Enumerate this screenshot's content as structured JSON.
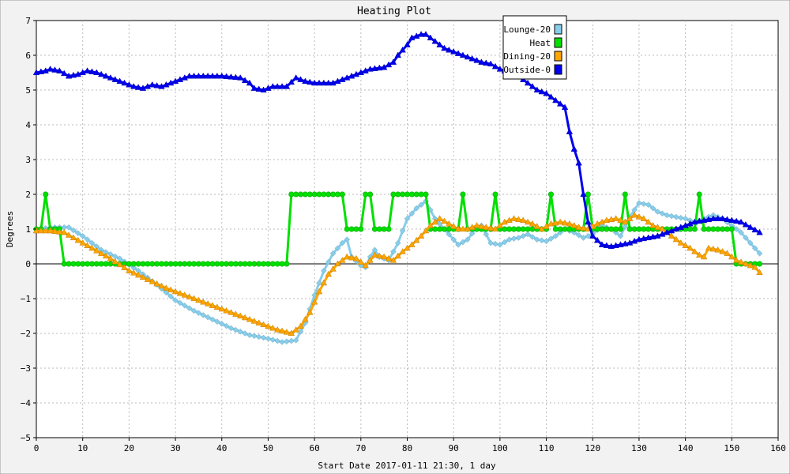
{
  "chart_data": {
    "type": "line",
    "title": "Heating Plot",
    "xlabel": "Start Date 2017-01-11 21:30, 1 day",
    "ylabel": "Degrees",
    "xlim": [
      0,
      160
    ],
    "ylim": [
      -5,
      7
    ],
    "xticks": [
      0,
      10,
      20,
      30,
      40,
      50,
      60,
      70,
      80,
      90,
      100,
      110,
      120,
      130,
      140,
      150,
      160
    ],
    "yticks": [
      -5,
      -4,
      -3,
      -2,
      -1,
      0,
      1,
      2,
      3,
      4,
      5,
      6,
      7
    ],
    "grid": true,
    "legend_position": "top-right",
    "series": [
      {
        "name": "Lounge-20",
        "color": "#87ceeb",
        "marker": "diamond",
        "points": [
          [
            0,
            1.0
          ],
          [
            4,
            1.05
          ],
          [
            7,
            1.05
          ],
          [
            10,
            0.8
          ],
          [
            14,
            0.4
          ],
          [
            18,
            0.15
          ],
          [
            22,
            -0.2
          ],
          [
            26,
            -0.6
          ],
          [
            30,
            -1.05
          ],
          [
            34,
            -1.35
          ],
          [
            38,
            -1.6
          ],
          [
            42,
            -1.85
          ],
          [
            46,
            -2.05
          ],
          [
            50,
            -2.15
          ],
          [
            53,
            -2.25
          ],
          [
            56,
            -2.2
          ],
          [
            58,
            -1.7
          ],
          [
            60,
            -0.9
          ],
          [
            62,
            -0.2
          ],
          [
            64,
            0.3
          ],
          [
            66,
            0.6
          ],
          [
            67,
            0.7
          ],
          [
            68,
            0.2
          ],
          [
            70,
            -0.05
          ],
          [
            71,
            -0.1
          ],
          [
            72,
            0.2
          ],
          [
            73,
            0.4
          ],
          [
            74,
            0.2
          ],
          [
            76,
            0.1
          ],
          [
            78,
            0.6
          ],
          [
            80,
            1.3
          ],
          [
            82,
            1.6
          ],
          [
            84,
            1.8
          ],
          [
            86,
            1.3
          ],
          [
            88,
            1.0
          ],
          [
            90,
            0.7
          ],
          [
            91,
            0.55
          ],
          [
            93,
            0.7
          ],
          [
            95,
            1.05
          ],
          [
            96,
            1.1
          ],
          [
            98,
            0.6
          ],
          [
            100,
            0.55
          ],
          [
            102,
            0.7
          ],
          [
            104,
            0.75
          ],
          [
            106,
            0.85
          ],
          [
            108,
            0.7
          ],
          [
            110,
            0.65
          ],
          [
            112,
            0.8
          ],
          [
            114,
            1.0
          ],
          [
            116,
            0.9
          ],
          [
            118,
            0.75
          ],
          [
            120,
            0.85
          ],
          [
            122,
            1.1
          ],
          [
            124,
            1.0
          ],
          [
            126,
            0.8
          ],
          [
            128,
            1.35
          ],
          [
            130,
            1.75
          ],
          [
            132,
            1.7
          ],
          [
            134,
            1.5
          ],
          [
            136,
            1.4
          ],
          [
            140,
            1.3
          ],
          [
            142,
            1.2
          ],
          [
            144,
            1.3
          ],
          [
            146,
            1.4
          ],
          [
            148,
            1.3
          ],
          [
            150,
            1.1
          ],
          [
            152,
            0.9
          ],
          [
            154,
            0.6
          ],
          [
            156,
            0.3
          ]
        ]
      },
      {
        "name": "Heat",
        "color": "#00e000",
        "marker": "circle",
        "step": true,
        "points": [
          [
            0,
            1
          ],
          [
            1,
            1
          ],
          [
            2,
            2
          ],
          [
            3,
            1
          ],
          [
            4,
            1
          ],
          [
            5,
            1
          ],
          [
            6,
            0
          ],
          [
            54,
            0
          ],
          [
            55,
            2
          ],
          [
            66,
            2
          ],
          [
            67,
            1
          ],
          [
            70,
            1
          ],
          [
            71,
            2
          ],
          [
            72,
            2
          ],
          [
            73,
            1
          ],
          [
            76,
            1
          ],
          [
            77,
            2
          ],
          [
            84,
            2
          ],
          [
            85,
            1
          ],
          [
            91,
            1
          ],
          [
            92,
            2
          ],
          [
            93,
            1
          ],
          [
            98,
            1
          ],
          [
            99,
            2
          ],
          [
            100,
            1
          ],
          [
            110,
            1
          ],
          [
            111,
            2
          ],
          [
            112,
            1
          ],
          [
            118,
            1
          ],
          [
            119,
            2
          ],
          [
            120,
            1
          ],
          [
            126,
            1
          ],
          [
            127,
            2
          ],
          [
            128,
            1
          ],
          [
            142,
            1
          ],
          [
            143,
            2
          ],
          [
            144,
            1
          ],
          [
            150,
            1
          ],
          [
            151,
            0
          ],
          [
            156,
            0
          ]
        ]
      },
      {
        "name": "Dining-20",
        "color": "#ffa500",
        "marker": "triangle",
        "points": [
          [
            0,
            0.95
          ],
          [
            3,
            0.95
          ],
          [
            6,
            0.9
          ],
          [
            8,
            0.75
          ],
          [
            12,
            0.45
          ],
          [
            16,
            0.15
          ],
          [
            20,
            -0.2
          ],
          [
            24,
            -0.45
          ],
          [
            28,
            -0.7
          ],
          [
            32,
            -0.9
          ],
          [
            36,
            -1.1
          ],
          [
            40,
            -1.3
          ],
          [
            44,
            -1.5
          ],
          [
            48,
            -1.7
          ],
          [
            52,
            -1.9
          ],
          [
            55,
            -2.0
          ],
          [
            57,
            -1.8
          ],
          [
            59,
            -1.4
          ],
          [
            61,
            -0.8
          ],
          [
            63,
            -0.3
          ],
          [
            65,
            0.0
          ],
          [
            67,
            0.2
          ],
          [
            69,
            0.15
          ],
          [
            71,
            -0.05
          ],
          [
            73,
            0.25
          ],
          [
            75,
            0.2
          ],
          [
            77,
            0.1
          ],
          [
            79,
            0.35
          ],
          [
            81,
            0.55
          ],
          [
            83,
            0.8
          ],
          [
            85,
            1.1
          ],
          [
            87,
            1.3
          ],
          [
            89,
            1.15
          ],
          [
            91,
            1.0
          ],
          [
            93,
            1.0
          ],
          [
            95,
            1.1
          ],
          [
            97,
            1.05
          ],
          [
            99,
            1.0
          ],
          [
            101,
            1.2
          ],
          [
            103,
            1.3
          ],
          [
            105,
            1.25
          ],
          [
            107,
            1.15
          ],
          [
            109,
            1.0
          ],
          [
            111,
            1.15
          ],
          [
            113,
            1.2
          ],
          [
            115,
            1.15
          ],
          [
            117,
            1.05
          ],
          [
            119,
            1.0
          ],
          [
            121,
            1.15
          ],
          [
            123,
            1.25
          ],
          [
            125,
            1.3
          ],
          [
            127,
            1.2
          ],
          [
            129,
            1.4
          ],
          [
            131,
            1.3
          ],
          [
            133,
            1.1
          ],
          [
            135,
            1.0
          ],
          [
            137,
            0.8
          ],
          [
            139,
            0.6
          ],
          [
            141,
            0.45
          ],
          [
            143,
            0.25
          ],
          [
            144,
            0.2
          ],
          [
            145,
            0.45
          ],
          [
            147,
            0.4
          ],
          [
            149,
            0.3
          ],
          [
            151,
            0.1
          ],
          [
            153,
            0.0
          ],
          [
            155,
            -0.1
          ],
          [
            156,
            -0.25
          ]
        ]
      },
      {
        "name": "Outside-0",
        "color": "#0000ee",
        "marker": "triangle",
        "points": [
          [
            0,
            5.5
          ],
          [
            2,
            5.55
          ],
          [
            3,
            5.6
          ],
          [
            5,
            5.55
          ],
          [
            7,
            5.4
          ],
          [
            9,
            5.45
          ],
          [
            11,
            5.55
          ],
          [
            13,
            5.5
          ],
          [
            15,
            5.4
          ],
          [
            17,
            5.3
          ],
          [
            19,
            5.2
          ],
          [
            21,
            5.1
          ],
          [
            23,
            5.05
          ],
          [
            25,
            5.15
          ],
          [
            27,
            5.1
          ],
          [
            29,
            5.2
          ],
          [
            31,
            5.3
          ],
          [
            33,
            5.4
          ],
          [
            36,
            5.4
          ],
          [
            40,
            5.4
          ],
          [
            44,
            5.35
          ],
          [
            46,
            5.2
          ],
          [
            47,
            5.05
          ],
          [
            49,
            5.0
          ],
          [
            51,
            5.1
          ],
          [
            54,
            5.1
          ],
          [
            56,
            5.35
          ],
          [
            58,
            5.25
          ],
          [
            60,
            5.2
          ],
          [
            64,
            5.2
          ],
          [
            66,
            5.3
          ],
          [
            68,
            5.4
          ],
          [
            70,
            5.5
          ],
          [
            72,
            5.6
          ],
          [
            75,
            5.65
          ],
          [
            77,
            5.8
          ],
          [
            78,
            6.0
          ],
          [
            80,
            6.3
          ],
          [
            81,
            6.5
          ],
          [
            83,
            6.6
          ],
          [
            84,
            6.6
          ],
          [
            86,
            6.4
          ],
          [
            88,
            6.2
          ],
          [
            90,
            6.1
          ],
          [
            92,
            6.0
          ],
          [
            96,
            5.8
          ],
          [
            98,
            5.75
          ],
          [
            100,
            5.6
          ],
          [
            102,
            5.5
          ],
          [
            104,
            5.4
          ],
          [
            106,
            5.2
          ],
          [
            108,
            5.0
          ],
          [
            110,
            4.9
          ],
          [
            112,
            4.7
          ],
          [
            113,
            4.6
          ],
          [
            114,
            4.5
          ],
          [
            115,
            3.8
          ],
          [
            116,
            3.3
          ],
          [
            117,
            2.9
          ],
          [
            118,
            2.0
          ],
          [
            119,
            1.2
          ],
          [
            120,
            0.8
          ],
          [
            122,
            0.55
          ],
          [
            124,
            0.5
          ],
          [
            126,
            0.55
          ],
          [
            128,
            0.6
          ],
          [
            130,
            0.7
          ],
          [
            132,
            0.75
          ],
          [
            134,
            0.8
          ],
          [
            136,
            0.9
          ],
          [
            138,
            1.0
          ],
          [
            140,
            1.1
          ],
          [
            142,
            1.2
          ],
          [
            144,
            1.25
          ],
          [
            146,
            1.3
          ],
          [
            148,
            1.3
          ],
          [
            150,
            1.25
          ],
          [
            152,
            1.2
          ],
          [
            154,
            1.05
          ],
          [
            156,
            0.9
          ]
        ]
      }
    ]
  }
}
